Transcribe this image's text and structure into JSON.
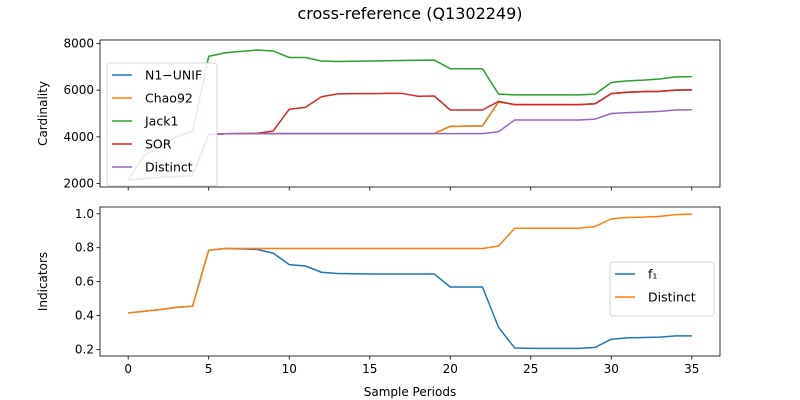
{
  "title": "cross-reference (Q1302249)",
  "chart_data": [
    {
      "type": "line",
      "ylabel": "Cardinality",
      "xlim": [
        -1.75,
        36.75
      ],
      "ylim": [
        1850,
        8150
      ],
      "yticks": [
        2000,
        4000,
        6000,
        8000
      ],
      "xticks": [
        0,
        5,
        10,
        15,
        20,
        25,
        30,
        35
      ],
      "show_xticklabels": false,
      "grid": false,
      "legend_position": "upper-left",
      "x": [
        0,
        1,
        2,
        3,
        4,
        5,
        6,
        7,
        8,
        9,
        10,
        11,
        12,
        13,
        14,
        15,
        16,
        17,
        18,
        19,
        20,
        21,
        22,
        23,
        24,
        25,
        26,
        27,
        28,
        29,
        30,
        31,
        32,
        33,
        34,
        35
      ],
      "series": [
        {
          "name": "N1−UNIF",
          "color": "#1f77b4",
          "values": [
            2150,
            2220,
            2260,
            2300,
            2340,
            4100,
            4130,
            4140,
            4140,
            4140,
            4140,
            4140,
            4140,
            4140,
            4140,
            4140,
            4140,
            4140,
            4140,
            4140,
            4450,
            4460,
            4470,
            5500,
            5380,
            5380,
            5380,
            5380,
            5380,
            5420,
            5850,
            5910,
            5940,
            5950,
            6000,
            6010
          ]
        },
        {
          "name": "Chao92",
          "color": "#ff7f0e",
          "values": [
            2150,
            2220,
            2260,
            2300,
            2340,
            4100,
            4130,
            4140,
            4140,
            4140,
            4140,
            4140,
            4140,
            4140,
            4140,
            4140,
            4140,
            4140,
            4140,
            4140,
            4450,
            4460,
            4470,
            5500,
            5380,
            5380,
            5380,
            5380,
            5380,
            5420,
            5850,
            5910,
            5940,
            5950,
            6000,
            6010
          ]
        },
        {
          "name": "Jack1",
          "color": "#2ca02c",
          "values": [
            2150,
            3200,
            3600,
            4000,
            4250,
            7450,
            7600,
            7660,
            7720,
            7680,
            7400,
            7400,
            7250,
            7230,
            7240,
            7250,
            7260,
            7270,
            7280,
            7290,
            6920,
            6920,
            6920,
            5830,
            5800,
            5800,
            5800,
            5800,
            5800,
            5830,
            6330,
            6400,
            6430,
            6480,
            6570,
            6580
          ]
        },
        {
          "name": "SOR",
          "color": "#d62728",
          "values": [
            2150,
            2220,
            2260,
            2300,
            2340,
            4100,
            4130,
            4140,
            4150,
            4250,
            5180,
            5260,
            5720,
            5840,
            5850,
            5850,
            5860,
            5860,
            5740,
            5750,
            5150,
            5150,
            5150,
            5520,
            5380,
            5380,
            5380,
            5380,
            5380,
            5420,
            5850,
            5910,
            5940,
            5950,
            6000,
            6010
          ]
        },
        {
          "name": "Distinct",
          "color": "#9467bd",
          "values": [
            2150,
            2220,
            2260,
            2300,
            2340,
            4100,
            4130,
            4140,
            4140,
            4140,
            4140,
            4140,
            4140,
            4140,
            4140,
            4140,
            4140,
            4140,
            4140,
            4140,
            4140,
            4140,
            4140,
            4220,
            4720,
            4720,
            4720,
            4720,
            4720,
            4760,
            5000,
            5040,
            5060,
            5090,
            5150,
            5160
          ]
        }
      ]
    },
    {
      "type": "line",
      "ylabel": "Indicators",
      "xlabel": "Sample Periods",
      "xlim": [
        -1.75,
        36.75
      ],
      "ylim": [
        0.161,
        1.04
      ],
      "yticks": [
        0.2,
        0.4,
        0.6,
        0.8,
        1.0
      ],
      "ytick_labels": [
        "0.2",
        "0.4",
        "0.6",
        "0.8",
        "1.0"
      ],
      "xticks": [
        0,
        5,
        10,
        15,
        20,
        25,
        30,
        35
      ],
      "xtick_labels": [
        "0",
        "5",
        "10",
        "15",
        "20",
        "25",
        "30",
        "35"
      ],
      "grid": false,
      "legend_position": "center-right",
      "x": [
        0,
        1,
        2,
        3,
        4,
        5,
        6,
        7,
        8,
        9,
        10,
        11,
        12,
        13,
        14,
        15,
        16,
        17,
        18,
        19,
        20,
        21,
        22,
        23,
        24,
        25,
        26,
        27,
        28,
        29,
        30,
        31,
        32,
        33,
        34,
        35
      ],
      "series": [
        {
          "name": "f₁",
          "color": "#1f77b4",
          "values": [
            0.415,
            0.425,
            0.435,
            0.448,
            0.455,
            0.785,
            0.795,
            0.793,
            0.79,
            0.768,
            0.7,
            0.692,
            0.655,
            0.648,
            0.646,
            0.645,
            0.645,
            0.645,
            0.645,
            0.645,
            0.568,
            0.568,
            0.568,
            0.33,
            0.208,
            0.206,
            0.206,
            0.206,
            0.206,
            0.212,
            0.26,
            0.268,
            0.27,
            0.272,
            0.28,
            0.28
          ]
        },
        {
          "name": "Distinct",
          "color": "#ff7f0e",
          "values": [
            0.415,
            0.425,
            0.435,
            0.448,
            0.455,
            0.785,
            0.795,
            0.795,
            0.795,
            0.795,
            0.795,
            0.795,
            0.795,
            0.795,
            0.795,
            0.795,
            0.795,
            0.795,
            0.795,
            0.795,
            0.795,
            0.795,
            0.795,
            0.81,
            0.915,
            0.915,
            0.915,
            0.915,
            0.915,
            0.925,
            0.97,
            0.978,
            0.98,
            0.985,
            0.995,
            0.998
          ]
        }
      ]
    }
  ]
}
